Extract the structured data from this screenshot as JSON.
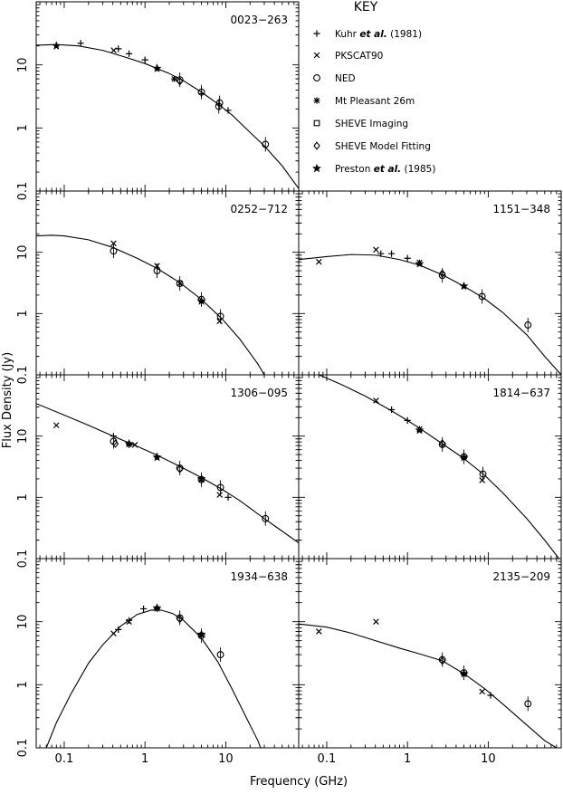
{
  "figure": {
    "y_axis_label": "Flux Density (Jy)",
    "x_axis_label": "Frequency (GHz)"
  },
  "key": {
    "title": "KEY",
    "entries": [
      {
        "marker": "plus",
        "prefix": "Kuhr ",
        "italic": "et al.",
        "suffix": " (1981)"
      },
      {
        "marker": "cross",
        "prefix": "PKSCAT90",
        "italic": "",
        "suffix": ""
      },
      {
        "marker": "circle",
        "prefix": "NED",
        "italic": "",
        "suffix": ""
      },
      {
        "marker": "asterisk",
        "prefix": "Mt Pleasant 26m",
        "italic": "",
        "suffix": ""
      },
      {
        "marker": "square",
        "prefix": "SHEVE Imaging",
        "italic": "",
        "suffix": ""
      },
      {
        "marker": "diamond",
        "prefix": "SHEVE Model Fitting",
        "italic": "",
        "suffix": ""
      },
      {
        "marker": "star",
        "prefix": "Preston ",
        "italic": "et al.",
        "suffix": " (1985)"
      }
    ]
  },
  "chart_data": {
    "type": "scatter",
    "x_scale": "log",
    "y_scale": "log",
    "xlim": [
      0.045,
      80
    ],
    "ylim": [
      0.1,
      100
    ],
    "x_ticks": [
      {
        "v": 0.1,
        "label": "0.1"
      },
      {
        "v": 1,
        "label": "1"
      },
      {
        "v": 10,
        "label": "10"
      }
    ],
    "y_ticks": [
      {
        "v": 0.1,
        "label": "0.1"
      },
      {
        "v": 1,
        "label": "1"
      },
      {
        "v": 10,
        "label": "10"
      }
    ],
    "panels": [
      {
        "name": "0023−263",
        "row": 0,
        "col": 0,
        "curve": [
          [
            0.045,
            20.5
          ],
          [
            0.08,
            21
          ],
          [
            0.15,
            20
          ],
          [
            0.3,
            17
          ],
          [
            0.6,
            13
          ],
          [
            1,
            10.5
          ],
          [
            2,
            7.3
          ],
          [
            3,
            5.6
          ],
          [
            5,
            3.7
          ],
          [
            8,
            2.4
          ],
          [
            12,
            1.6
          ],
          [
            20,
            0.85
          ],
          [
            30,
            0.52
          ],
          [
            50,
            0.25
          ],
          [
            80,
            0.11
          ]
        ],
        "points": [
          {
            "m": "star",
            "x": 0.08,
            "y": 20
          },
          {
            "m": "plus",
            "x": 0.16,
            "y": 22
          },
          {
            "m": "cross",
            "x": 0.41,
            "y": 17
          },
          {
            "m": "plus",
            "x": 0.468,
            "y": 18
          },
          {
            "m": "plus",
            "x": 0.635,
            "y": 15
          },
          {
            "m": "plus",
            "x": 1.0,
            "y": 12
          },
          {
            "m": "star",
            "x": 1.41,
            "y": 8.8
          },
          {
            "m": "plus",
            "x": 1.41,
            "y": 9
          },
          {
            "m": "circle",
            "x": 2.7,
            "y": 5.8
          },
          {
            "m": "diamond",
            "x": 2.7,
            "y": 5.5
          },
          {
            "m": "asterisk",
            "x": 2.3,
            "y": 6
          },
          {
            "m": "plus",
            "x": 5.0,
            "y": 3.5
          },
          {
            "m": "circle",
            "x": 5.0,
            "y": 3.7
          },
          {
            "m": "circle",
            "x": 8.4,
            "y": 2.5
          },
          {
            "m": "plus",
            "x": 10.7,
            "y": 1.9
          },
          {
            "m": "circle",
            "x": 8.2,
            "y": 2.2
          },
          {
            "m": "circle",
            "x": 31,
            "y": 0.55
          }
        ]
      },
      {
        "name": "0252−712",
        "row": 1,
        "col": 0,
        "curve": [
          [
            0.045,
            18.5
          ],
          [
            0.07,
            19
          ],
          [
            0.1,
            18.5
          ],
          [
            0.2,
            16
          ],
          [
            0.4,
            12
          ],
          [
            0.8,
            8
          ],
          [
            1.4,
            5.5
          ],
          [
            2.7,
            3.2
          ],
          [
            5,
            1.7
          ],
          [
            9,
            0.82
          ],
          [
            15,
            0.38
          ],
          [
            25,
            0.15
          ],
          [
            30,
            0.1
          ]
        ],
        "points": [
          {
            "m": "circle",
            "x": 0.408,
            "y": 10.5
          },
          {
            "m": "cross",
            "x": 0.408,
            "y": 14
          },
          {
            "m": "cross",
            "x": 1.41,
            "y": 6
          },
          {
            "m": "circle",
            "x": 1.41,
            "y": 5
          },
          {
            "m": "circle",
            "x": 2.7,
            "y": 3.1
          },
          {
            "m": "cross",
            "x": 2.7,
            "y": 3.1
          },
          {
            "m": "circle",
            "x": 5.0,
            "y": 1.7
          },
          {
            "m": "star",
            "x": 5.0,
            "y": 1.6
          },
          {
            "m": "cross",
            "x": 8.4,
            "y": 0.75
          },
          {
            "m": "circle",
            "x": 8.6,
            "y": 0.9
          }
        ]
      },
      {
        "name": "1151−348",
        "row": 1,
        "col": 1,
        "curve": [
          [
            0.045,
            7.6
          ],
          [
            0.1,
            8.5
          ],
          [
            0.2,
            9.2
          ],
          [
            0.4,
            9.0
          ],
          [
            0.8,
            7.6
          ],
          [
            1.4,
            6.2
          ],
          [
            2.7,
            4.3
          ],
          [
            5,
            2.8
          ],
          [
            9,
            1.75
          ],
          [
            15,
            1.05
          ],
          [
            30,
            0.45
          ],
          [
            50,
            0.2
          ],
          [
            80,
            0.1
          ]
        ],
        "points": [
          {
            "m": "cross",
            "x": 0.08,
            "y": 7
          },
          {
            "m": "cross",
            "x": 0.408,
            "y": 11
          },
          {
            "m": "plus",
            "x": 0.468,
            "y": 9.5
          },
          {
            "m": "plus",
            "x": 0.635,
            "y": 9.5
          },
          {
            "m": "plus",
            "x": 1.0,
            "y": 8
          },
          {
            "m": "star",
            "x": 1.41,
            "y": 6.5
          },
          {
            "m": "cross",
            "x": 1.41,
            "y": 6.8
          },
          {
            "m": "circle",
            "x": 2.7,
            "y": 4.2
          },
          {
            "m": "diamond",
            "x": 2.7,
            "y": 4.5
          },
          {
            "m": "star",
            "x": 5.0,
            "y": 2.8
          },
          {
            "m": "circle",
            "x": 8.4,
            "y": 1.9
          },
          {
            "m": "circle",
            "x": 31,
            "y": 0.65
          }
        ]
      },
      {
        "name": "1306−095",
        "row": 2,
        "col": 0,
        "curve": [
          [
            0.045,
            34
          ],
          [
            0.1,
            22
          ],
          [
            0.2,
            15
          ],
          [
            0.4,
            10
          ],
          [
            0.8,
            6.8
          ],
          [
            1.4,
            4.9
          ],
          [
            2.7,
            3.2
          ],
          [
            5,
            2.1
          ],
          [
            9,
            1.35
          ],
          [
            15,
            0.88
          ],
          [
            30,
            0.45
          ],
          [
            50,
            0.28
          ],
          [
            80,
            0.18
          ]
        ],
        "points": [
          {
            "m": "cross",
            "x": 0.08,
            "y": 15
          },
          {
            "m": "plus",
            "x": 0.408,
            "y": 10
          },
          {
            "m": "circle",
            "x": 0.408,
            "y": 8.2
          },
          {
            "m": "diamond",
            "x": 0.43,
            "y": 7.5
          },
          {
            "m": "star",
            "x": 0.635,
            "y": 7.5
          },
          {
            "m": "plus",
            "x": 0.635,
            "y": 7.2
          },
          {
            "m": "cross",
            "x": 0.75,
            "y": 7.2
          },
          {
            "m": "star",
            "x": 1.41,
            "y": 4.5
          },
          {
            "m": "plus",
            "x": 1.41,
            "y": 4.7
          },
          {
            "m": "circle",
            "x": 2.7,
            "y": 3.0
          },
          {
            "m": "diamond",
            "x": 2.7,
            "y": 2.9
          },
          {
            "m": "circle",
            "x": 5.0,
            "y": 1.95
          },
          {
            "m": "star",
            "x": 5.0,
            "y": 2.0
          },
          {
            "m": "cross",
            "x": 8.4,
            "y": 1.1
          },
          {
            "m": "circle",
            "x": 8.6,
            "y": 1.45
          },
          {
            "m": "plus",
            "x": 10.7,
            "y": 1.0
          },
          {
            "m": "circle",
            "x": 31,
            "y": 0.45
          }
        ]
      },
      {
        "name": "1814−637",
        "row": 2,
        "col": 1,
        "curve": [
          [
            0.08,
            100
          ],
          [
            0.15,
            70
          ],
          [
            0.3,
            45
          ],
          [
            0.6,
            27
          ],
          [
            1.0,
            18
          ],
          [
            1.4,
            13.5
          ],
          [
            2.7,
            7.5
          ],
          [
            5,
            4.3
          ],
          [
            9,
            2.3
          ],
          [
            15,
            1.2
          ],
          [
            30,
            0.45
          ],
          [
            50,
            0.2
          ],
          [
            80,
            0.09
          ]
        ],
        "points": [
          {
            "m": "cross",
            "x": 0.408,
            "y": 38
          },
          {
            "m": "plus",
            "x": 0.635,
            "y": 27
          },
          {
            "m": "plus",
            "x": 1.0,
            "y": 18
          },
          {
            "m": "star",
            "x": 1.41,
            "y": 12.5
          },
          {
            "m": "cross",
            "x": 1.41,
            "y": 13
          },
          {
            "m": "circle",
            "x": 2.7,
            "y": 7.3
          },
          {
            "m": "diamond",
            "x": 2.7,
            "y": 7.6
          },
          {
            "m": "circle",
            "x": 5.0,
            "y": 4.6
          },
          {
            "m": "star",
            "x": 5.0,
            "y": 4.5
          },
          {
            "m": "circle",
            "x": 8.6,
            "y": 2.4
          },
          {
            "m": "cross",
            "x": 8.4,
            "y": 1.9
          }
        ]
      },
      {
        "name": "1934−638",
        "row": 3,
        "col": 0,
        "curve": [
          [
            0.06,
            0.1
          ],
          [
            0.08,
            0.25
          ],
          [
            0.12,
            0.7
          ],
          [
            0.2,
            2.2
          ],
          [
            0.3,
            4.3
          ],
          [
            0.5,
            8.5
          ],
          [
            0.8,
            13
          ],
          [
            1.2,
            15.3
          ],
          [
            1.6,
            15.2
          ],
          [
            2.2,
            13.5
          ],
          [
            3,
            10.5
          ],
          [
            5,
            5.5
          ],
          [
            8,
            2.3
          ],
          [
            12,
            0.85
          ],
          [
            18,
            0.3
          ],
          [
            25,
            0.13
          ],
          [
            27,
            0.1
          ]
        ],
        "points": [
          {
            "m": "cross",
            "x": 0.408,
            "y": 6.5
          },
          {
            "m": "plus",
            "x": 0.468,
            "y": 7.5
          },
          {
            "m": "plus",
            "x": 0.635,
            "y": 10.5
          },
          {
            "m": "cross",
            "x": 0.635,
            "y": 10
          },
          {
            "m": "plus",
            "x": 0.96,
            "y": 16
          },
          {
            "m": "star",
            "x": 1.41,
            "y": 16.5
          },
          {
            "m": "plus",
            "x": 1.41,
            "y": 16
          },
          {
            "m": "circle",
            "x": 2.7,
            "y": 11.5
          },
          {
            "m": "diamond",
            "x": 2.7,
            "y": 11
          },
          {
            "m": "circle",
            "x": 5.0,
            "y": 6.0
          },
          {
            "m": "star",
            "x": 5.0,
            "y": 6.3
          },
          {
            "m": "circle",
            "x": 8.6,
            "y": 3.0
          }
        ]
      },
      {
        "name": "2135−209",
        "row": 3,
        "col": 1,
        "curve": [
          [
            0.045,
            9.2
          ],
          [
            0.1,
            8.2
          ],
          [
            0.2,
            6.6
          ],
          [
            0.4,
            5.0
          ],
          [
            0.8,
            3.8
          ],
          [
            1.4,
            3.1
          ],
          [
            2.7,
            2.4
          ],
          [
            5,
            1.5
          ],
          [
            9,
            0.87
          ],
          [
            15,
            0.5
          ],
          [
            30,
            0.23
          ],
          [
            50,
            0.13
          ],
          [
            70,
            0.1
          ]
        ],
        "points": [
          {
            "m": "cross",
            "x": 0.08,
            "y": 7
          },
          {
            "m": "cross",
            "x": 0.408,
            "y": 10
          },
          {
            "m": "circle",
            "x": 2.7,
            "y": 2.5
          },
          {
            "m": "diamond",
            "x": 2.7,
            "y": 2.4
          },
          {
            "m": "circle",
            "x": 5.0,
            "y": 1.55
          },
          {
            "m": "star",
            "x": 5.0,
            "y": 1.5
          },
          {
            "m": "cross",
            "x": 8.4,
            "y": 0.78
          },
          {
            "m": "plus",
            "x": 10.7,
            "y": 0.68
          },
          {
            "m": "circle",
            "x": 31,
            "y": 0.5
          }
        ]
      }
    ]
  }
}
